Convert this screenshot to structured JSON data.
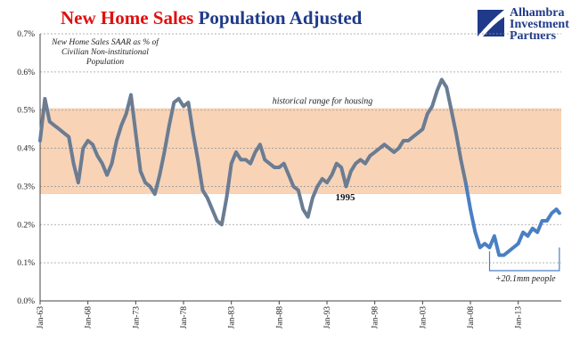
{
  "title": {
    "part1": "New Home Sales",
    "part2": "Population Adjusted"
  },
  "logo": {
    "line1": "Alhambra",
    "line2": "Investment",
    "line3": "Partners"
  },
  "colors": {
    "series": "#4a7fc4",
    "series_hist": "#7a7a7a",
    "band": "#f8d3b6",
    "title_red": "#e01010",
    "title_blue": "#1f3a8a"
  },
  "chart_data": {
    "type": "line",
    "ylim": [
      0,
      0.7
    ],
    "y_ticks": [
      "0.0%",
      "0.1%",
      "0.2%",
      "0.3%",
      "0.4%",
      "0.5%",
      "0.6%",
      "0.7%"
    ],
    "x_ticks": [
      "Jan-63",
      "Jan-68",
      "Jan-73",
      "Jan-78",
      "Jan-83",
      "Jan-88",
      "Jan-93",
      "Jan-98",
      "Jan-03",
      "Jan-08",
      "Jan-13"
    ],
    "x_range": [
      1963,
      2017.5
    ],
    "grid": true,
    "band": {
      "low": 0.28,
      "high": 0.505,
      "label": "historical range for housing"
    },
    "annotations": [
      {
        "text": "New Home Sales SAAR as % of Civilian Non-institutional Population",
        "lines": [
          "New Home Sales SAAR as % of",
          "Civilian Non-institutional",
          "Population"
        ]
      },
      {
        "text": "1995",
        "x": 1995.0,
        "y": 0.25
      },
      {
        "text": "+20.1mm people",
        "x": 2014.0,
        "y": 0.065
      }
    ],
    "series": [
      {
        "x": [
          1963.0,
          1963.5,
          1964.0,
          1964.5,
          1965.0,
          1965.5,
          1966.0,
          1966.5,
          1967.0,
          1967.5,
          1968.0,
          1968.5,
          1969.0,
          1969.5,
          1970.0,
          1970.5,
          1971.0,
          1971.5,
          1972.0,
          1972.5,
          1973.0,
          1973.5,
          1974.0,
          1974.5,
          1975.0,
          1975.5,
          1976.0,
          1976.5,
          1977.0,
          1977.5,
          1978.0,
          1978.5,
          1979.0,
          1979.5,
          1980.0,
          1980.5,
          1981.0,
          1981.5,
          1982.0,
          1982.5,
          1983.0,
          1983.5,
          1984.0,
          1984.5,
          1985.0,
          1985.5,
          1986.0,
          1986.5,
          1987.0,
          1987.5,
          1988.0,
          1988.5,
          1989.0,
          1989.5,
          1990.0,
          1990.5,
          1991.0,
          1991.5,
          1992.0,
          1992.5,
          1993.0,
          1993.5,
          1994.0,
          1994.5,
          1995.0,
          1995.5,
          1996.0,
          1996.5,
          1997.0,
          1997.5,
          1998.0,
          1998.5,
          1999.0,
          1999.5,
          2000.0,
          2000.5,
          2001.0,
          2001.5,
          2002.0,
          2002.5,
          2003.0,
          2003.5,
          2004.0,
          2004.5,
          2005.0,
          2005.5,
          2006.0,
          2006.5,
          2007.0,
          2007.5,
          2008.0,
          2008.5,
          2009.0,
          2009.5,
          2010.0,
          2010.5,
          2011.0,
          2011.5,
          2012.0,
          2012.5,
          2013.0,
          2013.5,
          2014.0,
          2014.5,
          2015.0,
          2015.5,
          2016.0,
          2016.5,
          2017.0,
          2017.3
        ],
        "y": [
          0.42,
          0.53,
          0.47,
          0.46,
          0.45,
          0.44,
          0.43,
          0.36,
          0.31,
          0.4,
          0.42,
          0.41,
          0.38,
          0.36,
          0.33,
          0.36,
          0.42,
          0.46,
          0.49,
          0.54,
          0.44,
          0.34,
          0.31,
          0.3,
          0.28,
          0.33,
          0.39,
          0.46,
          0.52,
          0.53,
          0.51,
          0.52,
          0.44,
          0.37,
          0.29,
          0.27,
          0.24,
          0.21,
          0.2,
          0.27,
          0.36,
          0.39,
          0.37,
          0.37,
          0.36,
          0.39,
          0.41,
          0.37,
          0.36,
          0.35,
          0.35,
          0.36,
          0.33,
          0.3,
          0.29,
          0.24,
          0.22,
          0.27,
          0.3,
          0.32,
          0.31,
          0.33,
          0.36,
          0.35,
          0.3,
          0.34,
          0.36,
          0.37,
          0.36,
          0.38,
          0.39,
          0.4,
          0.41,
          0.4,
          0.39,
          0.4,
          0.42,
          0.42,
          0.43,
          0.44,
          0.45,
          0.49,
          0.51,
          0.55,
          0.58,
          0.56,
          0.5,
          0.44,
          0.37,
          0.31,
          0.24,
          0.18,
          0.14,
          0.15,
          0.14,
          0.17,
          0.12,
          0.12,
          0.13,
          0.14,
          0.15,
          0.18,
          0.17,
          0.19,
          0.18,
          0.21,
          0.21,
          0.23,
          0.24,
          0.23
        ]
      }
    ]
  }
}
